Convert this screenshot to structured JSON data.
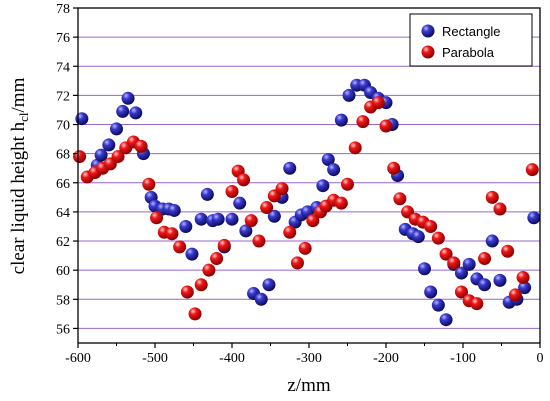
{
  "chart_data": {
    "type": "scatter",
    "xlabel": "z/mm",
    "ylabel_main": "clear liquid height h",
    "ylabel_sub": "cl",
    "ylabel_unit": "/mm",
    "xlim": [
      -600,
      0
    ],
    "ylim": [
      55,
      78
    ],
    "xticks": [
      -600,
      -500,
      -400,
      -300,
      -200,
      -100,
      0
    ],
    "yticks": [
      56,
      58,
      60,
      62,
      64,
      66,
      68,
      70,
      72,
      74,
      76,
      78
    ],
    "gridlines": [
      56,
      58,
      60,
      62,
      64,
      66,
      68,
      70,
      72,
      74,
      76
    ],
    "grid_color": "#9966cc",
    "legend_position": "top-right",
    "series": [
      {
        "name": "Rectangle",
        "color": "#1a1a8c",
        "points": [
          [
            -595,
            70.4
          ],
          [
            -575,
            67.2
          ],
          [
            -570,
            67.9
          ],
          [
            -560,
            68.6
          ],
          [
            -550,
            69.7
          ],
          [
            -542,
            70.9
          ],
          [
            -535,
            71.8
          ],
          [
            -525,
            70.8
          ],
          [
            -515,
            68.0
          ],
          [
            -505,
            65.0
          ],
          [
            -500,
            64.4
          ],
          [
            -490,
            64.2
          ],
          [
            -482,
            64.2
          ],
          [
            -475,
            64.1
          ],
          [
            -460,
            63.0
          ],
          [
            -452,
            61.1
          ],
          [
            -440,
            63.5
          ],
          [
            -432,
            65.2
          ],
          [
            -425,
            63.4
          ],
          [
            -418,
            63.5
          ],
          [
            -410,
            61.6
          ],
          [
            -400,
            63.5
          ],
          [
            -390,
            64.6
          ],
          [
            -382,
            62.7
          ],
          [
            -372,
            58.4
          ],
          [
            -362,
            58.0
          ],
          [
            -352,
            59.0
          ],
          [
            -345,
            63.7
          ],
          [
            -335,
            65.0
          ],
          [
            -325,
            67.0
          ],
          [
            -318,
            63.3
          ],
          [
            -310,
            63.8
          ],
          [
            -302,
            64.0
          ],
          [
            -290,
            64.3
          ],
          [
            -282,
            65.8
          ],
          [
            -275,
            67.6
          ],
          [
            -268,
            66.9
          ],
          [
            -258,
            70.3
          ],
          [
            -248,
            72.0
          ],
          [
            -238,
            72.7
          ],
          [
            -228,
            72.7
          ],
          [
            -220,
            72.2
          ],
          [
            -210,
            71.8
          ],
          [
            -200,
            71.5
          ],
          [
            -192,
            70.0
          ],
          [
            -185,
            66.5
          ],
          [
            -175,
            62.8
          ],
          [
            -165,
            62.5
          ],
          [
            -158,
            62.3
          ],
          [
            -150,
            60.1
          ],
          [
            -142,
            58.5
          ],
          [
            -132,
            57.6
          ],
          [
            -122,
            56.6
          ],
          [
            -112,
            60.4
          ],
          [
            -102,
            59.8
          ],
          [
            -92,
            60.4
          ],
          [
            -82,
            59.4
          ],
          [
            -72,
            59.0
          ],
          [
            -62,
            62.0
          ],
          [
            -52,
            59.3
          ],
          [
            -40,
            57.8
          ],
          [
            -30,
            58.0
          ],
          [
            -20,
            58.8
          ],
          [
            -8,
            63.6
          ]
        ]
      },
      {
        "name": "Parabola",
        "color": "#d40000",
        "points": [
          [
            -598,
            67.8
          ],
          [
            -588,
            66.4
          ],
          [
            -578,
            66.7
          ],
          [
            -568,
            67.0
          ],
          [
            -558,
            67.3
          ],
          [
            -548,
            67.8
          ],
          [
            -538,
            68.4
          ],
          [
            -528,
            68.8
          ],
          [
            -518,
            68.5
          ],
          [
            -508,
            65.9
          ],
          [
            -498,
            63.6
          ],
          [
            -488,
            62.6
          ],
          [
            -478,
            62.5
          ],
          [
            -468,
            61.6
          ],
          [
            -458,
            58.5
          ],
          [
            -448,
            57.0
          ],
          [
            -440,
            59.0
          ],
          [
            -430,
            60.0
          ],
          [
            -420,
            60.8
          ],
          [
            -410,
            61.7
          ],
          [
            -400,
            65.4
          ],
          [
            -392,
            66.8
          ],
          [
            -385,
            66.2
          ],
          [
            -375,
            63.4
          ],
          [
            -365,
            62.0
          ],
          [
            -355,
            64.3
          ],
          [
            -345,
            65.1
          ],
          [
            -335,
            65.6
          ],
          [
            -325,
            62.6
          ],
          [
            -315,
            60.5
          ],
          [
            -305,
            61.5
          ],
          [
            -295,
            63.4
          ],
          [
            -285,
            64.0
          ],
          [
            -278,
            64.4
          ],
          [
            -268,
            64.8
          ],
          [
            -258,
            64.6
          ],
          [
            -250,
            65.9
          ],
          [
            -240,
            68.4
          ],
          [
            -230,
            70.2
          ],
          [
            -220,
            71.2
          ],
          [
            -210,
            71.5
          ],
          [
            -200,
            69.9
          ],
          [
            -190,
            67.0
          ],
          [
            -182,
            64.9
          ],
          [
            -172,
            64.0
          ],
          [
            -162,
            63.5
          ],
          [
            -152,
            63.3
          ],
          [
            -142,
            63.0
          ],
          [
            -132,
            62.2
          ],
          [
            -122,
            61.1
          ],
          [
            -112,
            60.5
          ],
          [
            -102,
            58.5
          ],
          [
            -92,
            57.9
          ],
          [
            -82,
            57.7
          ],
          [
            -72,
            60.8
          ],
          [
            -62,
            65.0
          ],
          [
            -52,
            64.2
          ],
          [
            -42,
            61.3
          ],
          [
            -32,
            58.3
          ],
          [
            -22,
            59.5
          ],
          [
            -10,
            66.9
          ]
        ]
      }
    ]
  }
}
